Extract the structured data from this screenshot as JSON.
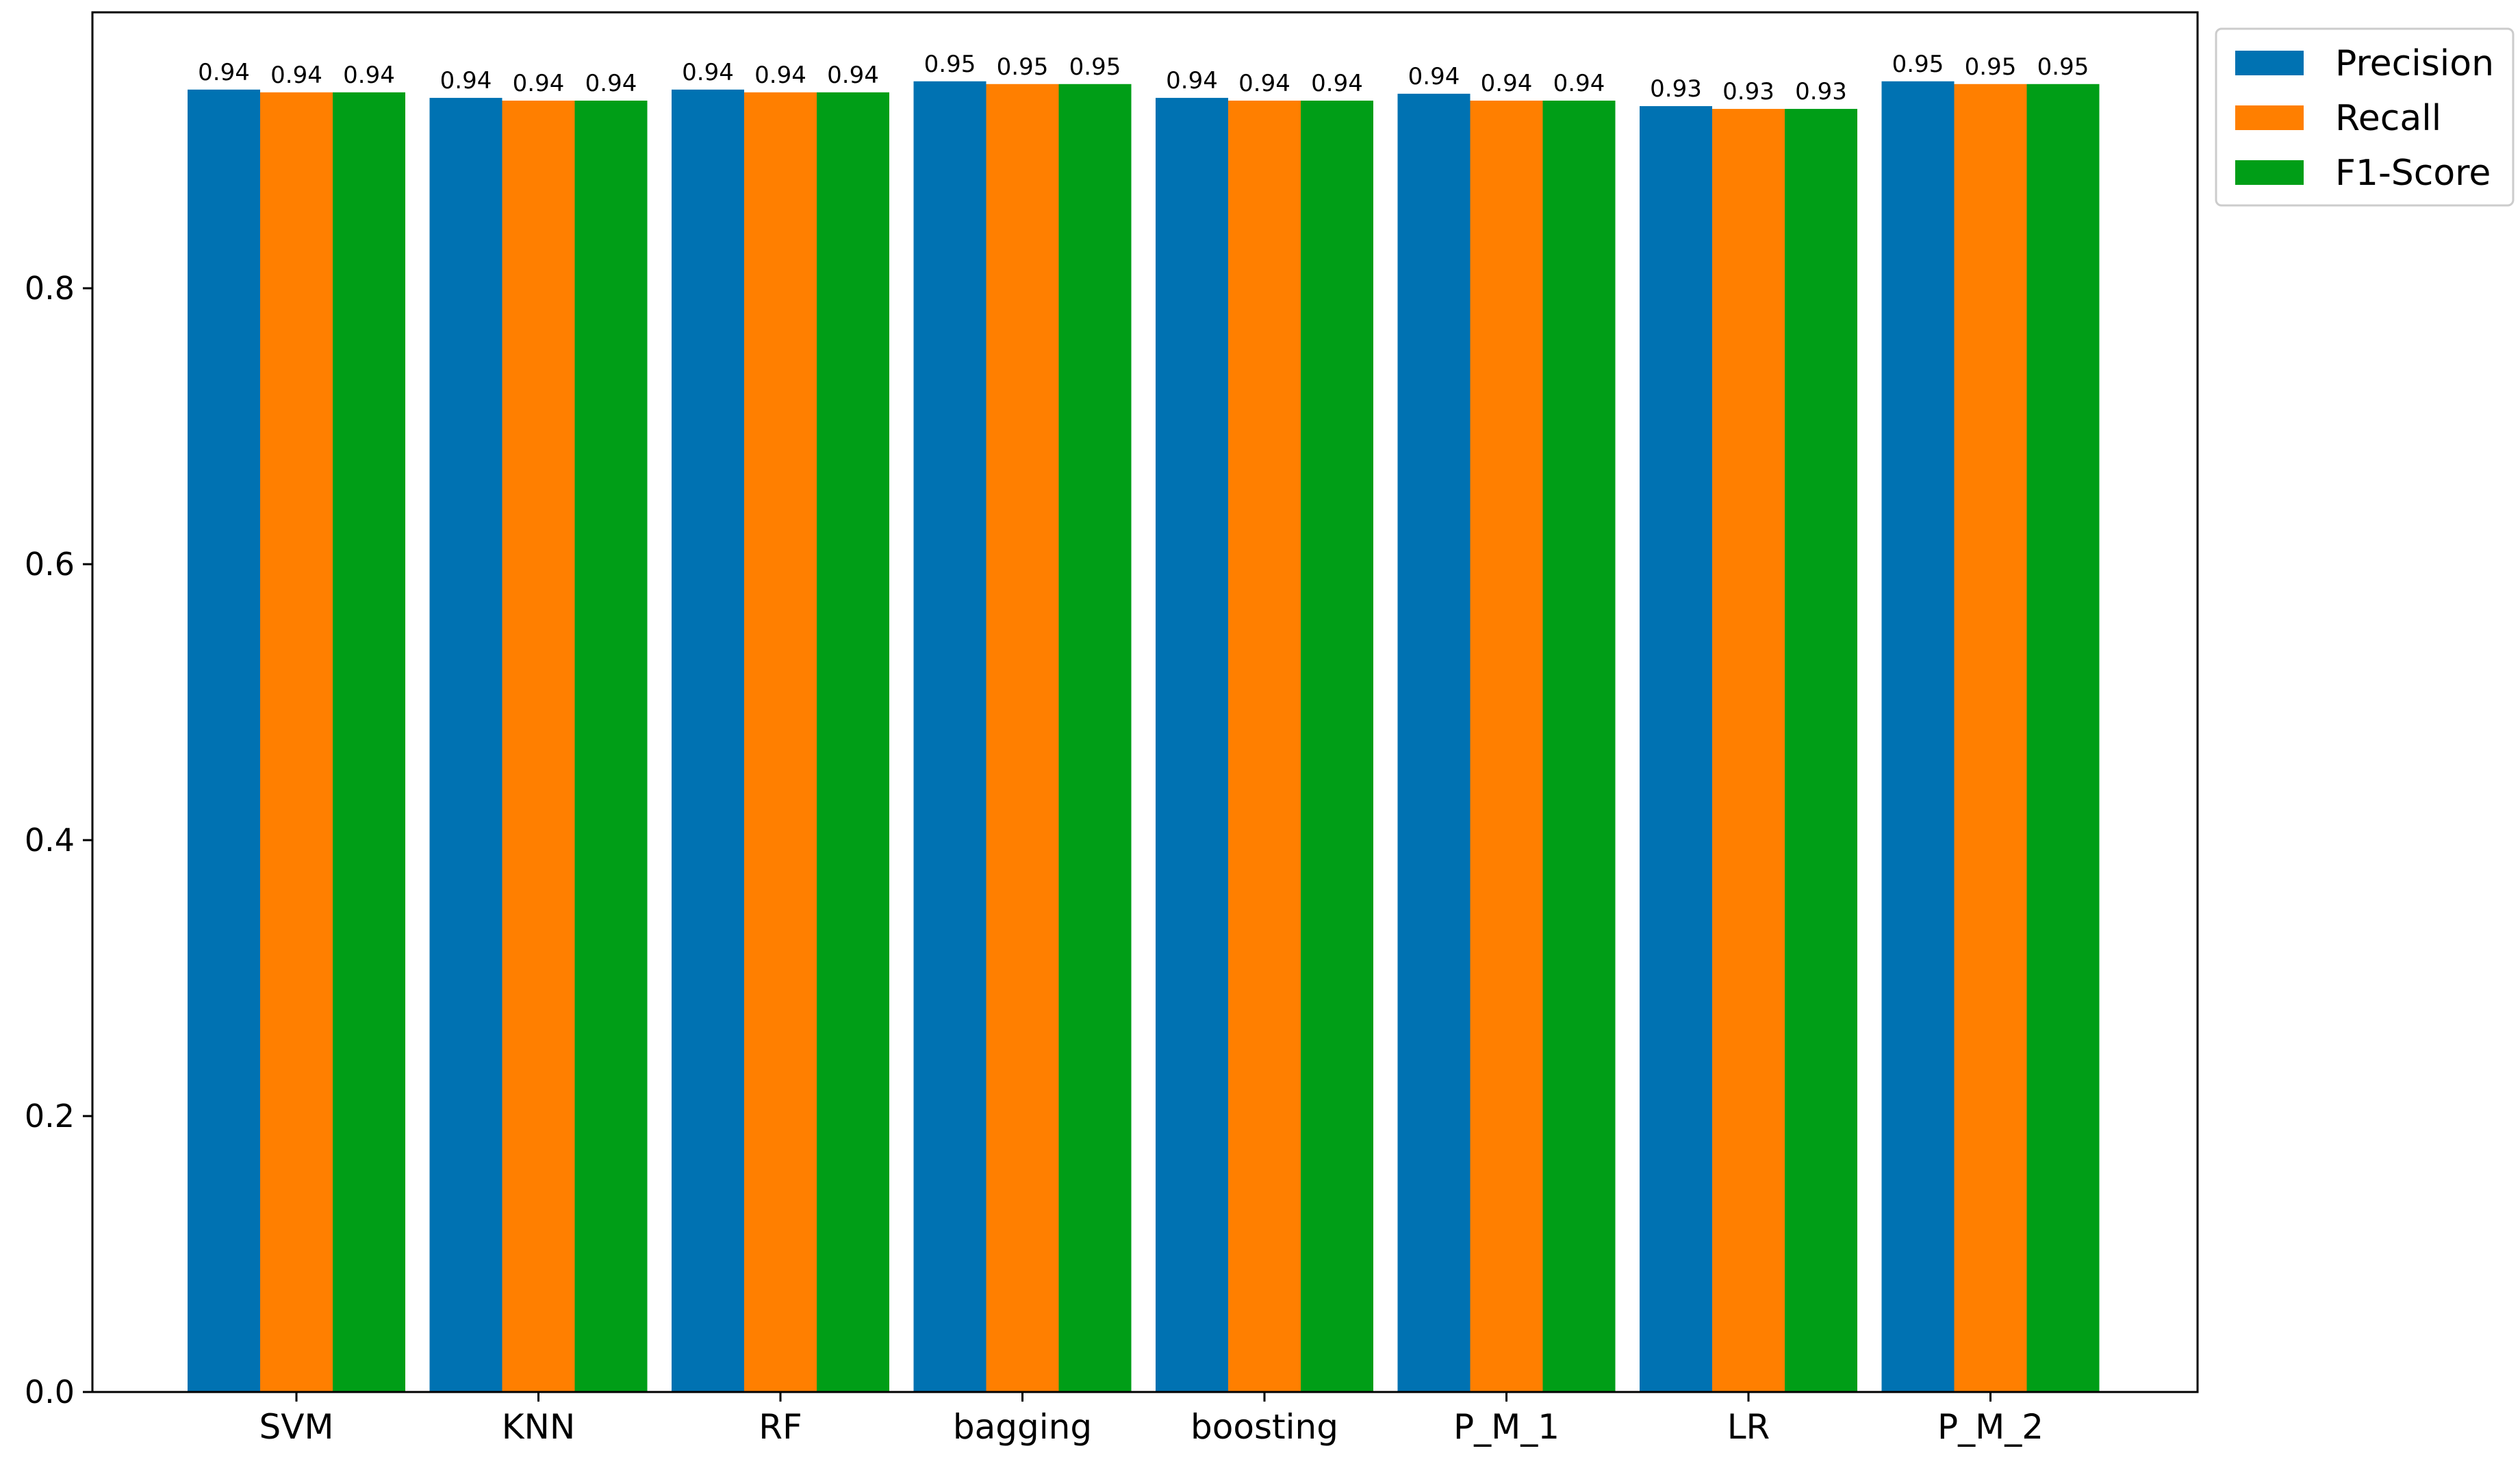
{
  "chart_data": {
    "type": "bar",
    "title": "",
    "xlabel": "",
    "ylabel": "",
    "ylim": [
      0,
      1.0
    ],
    "yticks": [
      "0.0",
      "0.2",
      "0.4",
      "0.6",
      "0.8"
    ],
    "grid": false,
    "legend_position": "outside top-right",
    "categories": [
      "SVM",
      "KNN",
      "RF",
      "bagging",
      "boosting",
      "P_M_1",
      "LR",
      "P_M_2"
    ],
    "series": [
      {
        "name": "Precision",
        "color": "#0072b2",
        "values": [
          0.944,
          0.938,
          0.944,
          0.95,
          0.938,
          0.941,
          0.932,
          0.95
        ],
        "labels": [
          "0.94",
          "0.94",
          "0.94",
          "0.95",
          "0.94",
          "0.94",
          "0.93",
          "0.95"
        ]
      },
      {
        "name": "Recall",
        "color": "#ff7f00",
        "values": [
          0.942,
          0.936,
          0.942,
          0.948,
          0.936,
          0.936,
          0.93,
          0.948
        ],
        "labels": [
          "0.94",
          "0.94",
          "0.94",
          "0.95",
          "0.94",
          "0.94",
          "0.93",
          "0.95"
        ]
      },
      {
        "name": "F1-Score",
        "color": "#009e17",
        "values": [
          0.942,
          0.936,
          0.942,
          0.948,
          0.936,
          0.936,
          0.93,
          0.948
        ],
        "labels": [
          "0.94",
          "0.94",
          "0.94",
          "0.95",
          "0.94",
          "0.94",
          "0.93",
          "0.95"
        ]
      }
    ]
  }
}
